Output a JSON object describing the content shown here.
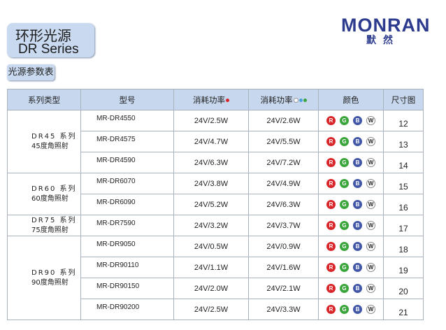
{
  "header": {
    "title": "环形光源",
    "subtitle": "DR Series",
    "logo": "MONRAN",
    "logo_sub": "默然"
  },
  "section_label": "光源参数表",
  "table": {
    "columns": [
      "系列类型",
      "型号",
      "消耗功率",
      "消耗功率",
      "颜色",
      "尺寸图"
    ],
    "color_badges": [
      "R",
      "G",
      "B",
      "W"
    ],
    "groups": [
      {
        "name": "DR45 系列",
        "angle": "45度角照射",
        "rows": [
          [
            "MR-DR4550",
            "24V/2.5W",
            "24V/2.6W",
            12
          ],
          [
            "MR-DR4575",
            "24V/4.7W",
            "24V/5.5W",
            13
          ],
          [
            "MR-DR4590",
            "24V/6.3W",
            "24V/7.2W",
            14
          ]
        ]
      },
      {
        "name": "DR60 系列",
        "angle": "60度角照射",
        "rows": [
          [
            "MR-DR6070",
            "24V/3.8W",
            "24V/4.9W",
            15
          ],
          [
            "MR-DR6090",
            "24V/5.2W",
            "24V/6.3W",
            16
          ]
        ]
      },
      {
        "name": "DR75 系列",
        "angle": "75度角照射",
        "rows": [
          [
            "MR-DR7590",
            "24V/3.2W",
            "24V/3.7W",
            17
          ]
        ]
      },
      {
        "name": "DR90 系列",
        "angle": "90度角照射",
        "rows": [
          [
            "MR-DR9050",
            "24V/0.5W",
            "24V/0.9W",
            18
          ],
          [
            "MR-DR90110",
            "24V/1.1W",
            "24V/1.6W",
            19
          ],
          [
            "MR-DR90150",
            "24V/2.0W",
            "24V/2.1W",
            20
          ],
          [
            "MR-DR90200",
            "24V/2.5W",
            "24V/3.3W",
            21
          ]
        ]
      }
    ]
  }
}
